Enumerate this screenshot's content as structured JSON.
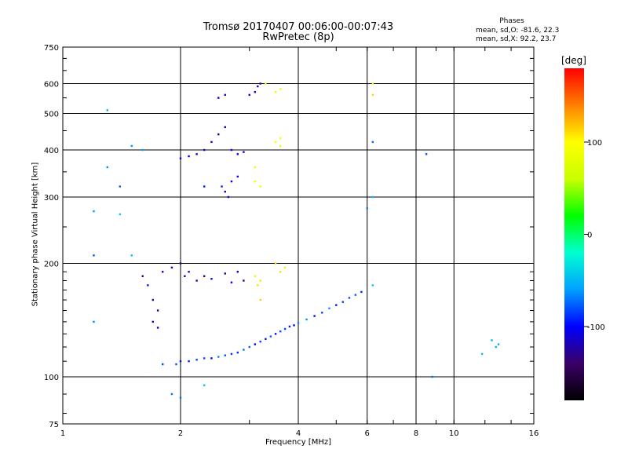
{
  "chart_data": {
    "type": "scatter",
    "title": "Tromsø 20170407 00:06:00-00:07:43",
    "subtitle": "RwPretec (8p)",
    "xlabel": "Frequency [MHz]",
    "ylabel": "Stationary phase Virtual Height [km]",
    "x_scale": "log",
    "y_scale": "log",
    "xlim": [
      1,
      16
    ],
    "ylim": [
      75,
      750
    ],
    "x_ticks": [
      "1",
      "2",
      "4",
      "6",
      "8",
      "10",
      "16"
    ],
    "y_ticks": [
      "75",
      "100",
      "200",
      "300",
      "400",
      "500",
      "600",
      "750"
    ],
    "grid": true,
    "phases_legend": {
      "heading": "Phases",
      "o_line": "mean, sd,O: -81.6, 22.3",
      "x_line": "mean, sd,X:  92.2, 23.7"
    },
    "colorbar": {
      "label": "[deg]",
      "ticks": [
        "100",
        "0",
        "-100"
      ],
      "range_deg": [
        -180,
        180
      ],
      "colormap": [
        "#000000",
        "#3a0066",
        "#0000ff",
        "#00a0ff",
        "#00ffd0",
        "#00ff00",
        "#c8ff00",
        "#ffff00",
        "#ff8000",
        "#ff0000"
      ]
    },
    "series": [
      {
        "cluster": "O-trace",
        "phase_deg": -82,
        "points": [
          [
            1.8,
            108
          ],
          [
            1.95,
            108
          ],
          [
            2.0,
            110
          ],
          [
            2.1,
            110
          ],
          [
            2.2,
            111
          ],
          [
            2.3,
            112
          ],
          [
            2.4,
            112
          ],
          [
            2.5,
            113
          ],
          [
            2.6,
            114
          ],
          [
            2.7,
            115
          ],
          [
            2.8,
            116
          ],
          [
            2.9,
            118
          ],
          [
            3.0,
            120
          ],
          [
            3.1,
            122
          ],
          [
            3.2,
            124
          ],
          [
            3.3,
            126
          ],
          [
            3.4,
            128
          ],
          [
            3.5,
            130
          ],
          [
            3.6,
            132
          ],
          [
            3.7,
            134
          ],
          [
            3.8,
            136
          ],
          [
            3.9,
            137
          ],
          [
            4.0,
            139
          ],
          [
            4.2,
            142
          ],
          [
            4.4,
            145
          ],
          [
            4.6,
            148
          ],
          [
            4.8,
            152
          ],
          [
            5.0,
            155
          ],
          [
            5.2,
            158
          ],
          [
            5.4,
            162
          ],
          [
            5.6,
            165
          ],
          [
            5.8,
            168
          ]
        ]
      },
      {
        "cluster": "O-echo-low-F",
        "phase_deg": -115,
        "points": [
          [
            1.6,
            185
          ],
          [
            1.65,
            175
          ],
          [
            1.7,
            160
          ],
          [
            1.75,
            150
          ],
          [
            1.8,
            190
          ],
          [
            1.9,
            195
          ],
          [
            2.0,
            200
          ],
          [
            2.05,
            185
          ],
          [
            2.1,
            190
          ],
          [
            2.2,
            180
          ],
          [
            2.3,
            185
          ],
          [
            2.4,
            182
          ],
          [
            2.6,
            188
          ],
          [
            2.7,
            178
          ],
          [
            2.8,
            190
          ],
          [
            2.9,
            180
          ],
          [
            1.7,
            140
          ],
          [
            1.75,
            135
          ]
        ]
      },
      {
        "cluster": "O-echo-high",
        "phase_deg": -110,
        "points": [
          [
            2.0,
            380
          ],
          [
            2.1,
            385
          ],
          [
            2.2,
            390
          ],
          [
            2.3,
            400
          ],
          [
            2.4,
            420
          ],
          [
            2.5,
            440
          ],
          [
            2.6,
            460
          ],
          [
            2.7,
            400
          ],
          [
            2.8,
            390
          ],
          [
            2.9,
            395
          ],
          [
            2.55,
            320
          ],
          [
            2.6,
            310
          ],
          [
            2.65,
            300
          ],
          [
            2.7,
            330
          ],
          [
            2.8,
            340
          ],
          [
            2.3,
            320
          ],
          [
            3.0,
            560
          ],
          [
            3.1,
            570
          ],
          [
            3.15,
            590
          ],
          [
            3.2,
            600
          ],
          [
            2.5,
            550
          ],
          [
            2.6,
            560
          ]
        ]
      },
      {
        "cluster": "X-echo",
        "phase_deg": 95,
        "points": [
          [
            3.1,
            185
          ],
          [
            3.2,
            180
          ],
          [
            3.15,
            175
          ],
          [
            3.2,
            160
          ],
          [
            3.5,
            200
          ],
          [
            3.6,
            190
          ],
          [
            3.7,
            195
          ],
          [
            3.5,
            420
          ],
          [
            3.6,
            430
          ],
          [
            3.6,
            410
          ],
          [
            3.1,
            330
          ],
          [
            3.2,
            320
          ],
          [
            3.1,
            360
          ],
          [
            3.3,
            600
          ],
          [
            3.6,
            580
          ],
          [
            3.5,
            570
          ],
          [
            6.2,
            600
          ],
          [
            6.2,
            560
          ]
        ]
      },
      {
        "cluster": "scattered",
        "phase_deg": -60,
        "points": [
          [
            1.2,
            210
          ],
          [
            1.2,
            140
          ],
          [
            1.3,
            510
          ],
          [
            1.3,
            360
          ],
          [
            1.4,
            320
          ],
          [
            1.4,
            270
          ],
          [
            1.5,
            410
          ],
          [
            1.5,
            210
          ],
          [
            1.6,
            400
          ],
          [
            1.2,
            275
          ],
          [
            6.2,
            420
          ],
          [
            6.2,
            300
          ],
          [
            6.2,
            175
          ],
          [
            6.0,
            280
          ],
          [
            8.5,
            390
          ],
          [
            8.8,
            100
          ],
          [
            12.5,
            125
          ],
          [
            12.8,
            120
          ],
          [
            13.0,
            122
          ],
          [
            11.8,
            115
          ],
          [
            1.9,
            90
          ],
          [
            2.3,
            95
          ],
          [
            2.0,
            88
          ]
        ]
      }
    ]
  }
}
